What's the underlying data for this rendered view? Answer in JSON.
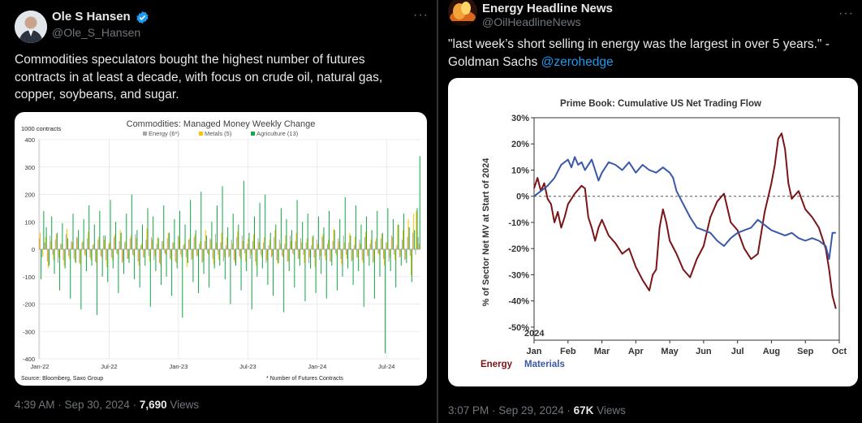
{
  "left_post": {
    "author_name": "Ole S Hansen",
    "author_handle": "@Ole_S_Hansen",
    "verified_icon": "verified-badge-icon",
    "text_lines": [
      "Commodities speculators bought the highest number of futures",
      "contracts in at least a decade, with focus on crude oil, natural gas,",
      "copper, soybeans, and sugar."
    ],
    "time": "4:39 AM · Sep 30, 2024 · ",
    "views_count": "7,690",
    "views_label": " Views"
  },
  "right_post": {
    "author_name": "Energy Headline News",
    "author_handle": "@OilHeadlineNews",
    "text_line1": "\"last week’s short selling in energy was the largest in over 5 years.\" -",
    "text_line2_prefix": "Goldman Sachs ",
    "text_line2_link": "@zerohedge",
    "time": "3:07 PM · Sep 29, 2024 · ",
    "views_count": "67K",
    "views_label": " Views"
  },
  "chart_data": [
    {
      "type": "bar",
      "title": "Commodities: Managed Money Weekly Change",
      "unit_label": "1000 contracts",
      "ylim": [
        -400,
        400
      ],
      "y_ticks": [
        "400",
        "300",
        "200",
        "100",
        "0",
        "-100",
        "-200",
        "-300",
        "-400"
      ],
      "x_tick_labels": [
        "Jan-22",
        "Jul-22",
        "Jan-23",
        "Jul-23",
        "Jan-24",
        "Jul-24"
      ],
      "legend": [
        "Energy (6*)",
        "Metals (5)",
        "Agriculture (13)"
      ],
      "series_colors": {
        "Energy (6*)": "#a6a6a6",
        "Metals (5)": "#ffc000",
        "Agriculture (13)": "#18a84b"
      },
      "source": "Source: Bloomberg, Saxo Group",
      "footnote": "* Number of Futures Contracts",
      "grid": true,
      "weeks": 143,
      "series": [
        {
          "name": "Energy (6*)",
          "values": [
            40,
            -30,
            25,
            -45,
            50,
            -20,
            35,
            -50,
            20,
            -40,
            55,
            -25,
            30,
            -35,
            45,
            -50,
            25,
            -20,
            40,
            -30,
            15,
            -45,
            35,
            -25,
            50,
            -40,
            20,
            -30,
            45,
            -15,
            30,
            -50,
            25,
            -35,
            40,
            -20,
            55,
            -45,
            15,
            -30,
            35,
            -25,
            45,
            -40,
            20,
            -50,
            30,
            -15,
            40,
            -35,
            25,
            -45,
            50,
            -20,
            15,
            -30,
            35,
            -40,
            45,
            -25,
            20,
            -50,
            30,
            -15,
            40,
            -35,
            55,
            -20,
            25,
            -45,
            15,
            -30,
            35,
            -40,
            45,
            -25,
            50,
            -15,
            20,
            -35,
            30,
            -45,
            40,
            -20,
            25,
            -50,
            15,
            -30,
            45,
            -40,
            35,
            -25,
            20,
            -45,
            50,
            -15,
            30,
            -35,
            40,
            -20,
            25,
            -50,
            15,
            -30,
            35,
            -40,
            45,
            -25,
            20,
            -45,
            30,
            -15,
            40,
            -35,
            50,
            -20,
            25,
            -45,
            15,
            -30,
            35,
            -40,
            45,
            -25,
            20,
            -50,
            30,
            -15,
            40,
            -35,
            25,
            -45,
            50,
            -20,
            15,
            -30,
            35,
            -40,
            45,
            -25,
            60,
            -20,
            45
          ]
        },
        {
          "name": "Metals (5)",
          "values": [
            60,
            -25,
            45,
            -70,
            30,
            -40,
            55,
            -30,
            20,
            -60,
            75,
            -35,
            25,
            -45,
            40,
            -55,
            30,
            -25,
            65,
            -40,
            20,
            -50,
            45,
            -30,
            35,
            -65,
            25,
            -40,
            55,
            -20,
            70,
            -45,
            30,
            -35,
            50,
            -25,
            40,
            -60,
            20,
            -30,
            75,
            -45,
            35,
            -25,
            45,
            -55,
            30,
            -20,
            60,
            -40,
            25,
            -50,
            45,
            -30,
            20,
            -65,
            40,
            -35,
            55,
            -25,
            30,
            -45,
            70,
            -20,
            35,
            -55,
            25,
            -40,
            60,
            -30,
            45,
            -25,
            20,
            -50,
            65,
            -35,
            30,
            -45,
            40,
            -20,
            55,
            -60,
            25,
            -30,
            45,
            -40,
            35,
            -25,
            70,
            -55,
            20,
            -30,
            50,
            -45,
            30,
            -20,
            60,
            -35,
            25,
            -50,
            40,
            -30,
            45,
            -65,
            20,
            -25,
            55,
            -40,
            35,
            -45,
            75,
            -20,
            30,
            -55,
            25,
            -35,
            60,
            -40,
            45,
            -30,
            20,
            -50,
            65,
            -25,
            35,
            -45,
            40,
            -20,
            55,
            -60,
            25,
            -30,
            45,
            -40,
            90,
            -25,
            70,
            -35,
            110,
            -95,
            130,
            140,
            20
          ]
        },
        {
          "name": "Agriculture (13)",
          "values": [
            -110,
            140,
            80,
            -60,
            120,
            -90,
            60,
            -150,
            95,
            -70,
            40,
            -180,
            130,
            -50,
            70,
            -220,
            110,
            -80,
            160,
            -60,
            90,
            -240,
            140,
            -100,
            50,
            -120,
            180,
            -70,
            100,
            -160,
            60,
            -90,
            130,
            -50,
            200,
            -110,
            70,
            -140,
            90,
            -60,
            150,
            -210,
            120,
            -80,
            40,
            -130,
            160,
            -100,
            60,
            -170,
            110,
            -70,
            140,
            -250,
            90,
            -50,
            180,
            -120,
            70,
            -160,
            210,
            -90,
            50,
            -140,
            100,
            -70,
            160,
            -60,
            230,
            -110,
            80,
            -200,
            130,
            -60,
            90,
            -150,
            250,
            -80,
            60,
            -220,
            120,
            -100,
            170,
            -70,
            200,
            -130,
            60,
            -170,
            90,
            -50,
            150,
            -230,
            110,
            -80,
            70,
            -140,
            180,
            -60,
            100,
            -190,
            130,
            -70,
            50,
            -160,
            120,
            -90,
            80,
            -180,
            140,
            -60,
            70,
            -150,
            110,
            -100,
            190,
            -70,
            50,
            -130,
            160,
            -80,
            90,
            -210,
            120,
            -60,
            70,
            -180,
            140,
            -100,
            60,
            -380,
            150,
            -80,
            110,
            -140,
            90,
            -60,
            130,
            -50,
            80,
            -120,
            70,
            150,
            340
          ]
        }
      ]
    },
    {
      "type": "line",
      "title": "Prime Book: Cumulative US Net Trading Flow",
      "ylabel": "% of Sector Net MV at Start of 2024",
      "year_label": "2024",
      "ylim": [
        -55,
        30
      ],
      "y_ticks": [
        "30%",
        "20%",
        "10%",
        "0%",
        "-10%",
        "-20%",
        "-30%",
        "-40%",
        "-50%"
      ],
      "x_tick_labels": [
        "Jan",
        "Feb",
        "Mar",
        "Apr",
        "May",
        "Jun",
        "Jul",
        "Aug",
        "Sep",
        "Oct"
      ],
      "x_range_months": [
        0,
        9
      ],
      "series": [
        {
          "name": "Energy",
          "color": "#7b1416",
          "x": [
            0,
            0.1,
            0.2,
            0.3,
            0.4,
            0.5,
            0.6,
            0.7,
            0.8,
            0.9,
            1.0,
            1.2,
            1.4,
            1.5,
            1.6,
            1.7,
            1.8,
            1.9,
            2.0,
            2.2,
            2.4,
            2.6,
            2.8,
            3.0,
            3.2,
            3.4,
            3.5,
            3.6,
            3.7,
            3.8,
            3.9,
            4.0,
            4.2,
            4.4,
            4.6,
            4.8,
            5.0,
            5.2,
            5.4,
            5.6,
            5.8,
            6.0,
            6.2,
            6.4,
            6.6,
            6.8,
            7.0,
            7.1,
            7.2,
            7.3,
            7.4,
            7.5,
            7.6,
            7.8,
            8.0,
            8.2,
            8.4,
            8.6,
            8.7,
            8.8,
            8.9
          ],
          "y": [
            3,
            7,
            2,
            5,
            -1,
            -3,
            -10,
            -6,
            -12,
            -8,
            -3,
            1,
            4,
            3,
            -8,
            -12,
            -17,
            -12,
            -9,
            -15,
            -18,
            -22,
            -20,
            -27,
            -32,
            -36,
            -30,
            -28,
            -12,
            -5,
            -10,
            -17,
            -22,
            -28,
            -31,
            -24,
            -19,
            -8,
            -2,
            1,
            -10,
            -13,
            -20,
            -24,
            -22,
            -6,
            5,
            12,
            22,
            24,
            18,
            5,
            -1,
            2,
            -5,
            -8,
            -12,
            -20,
            -28,
            -38,
            -43
          ]
        },
        {
          "name": "Materials",
          "color": "#3a58a8",
          "x": [
            0,
            0.2,
            0.4,
            0.6,
            0.8,
            1.0,
            1.1,
            1.2,
            1.3,
            1.4,
            1.5,
            1.7,
            1.9,
            2.0,
            2.2,
            2.4,
            2.6,
            2.8,
            3.0,
            3.2,
            3.4,
            3.6,
            3.8,
            4.0,
            4.1,
            4.2,
            4.4,
            4.6,
            4.8,
            5.0,
            5.2,
            5.4,
            5.6,
            5.8,
            6.0,
            6.2,
            6.4,
            6.6,
            6.8,
            7.0,
            7.2,
            7.4,
            7.6,
            7.8,
            8.0,
            8.2,
            8.4,
            8.6,
            8.7,
            8.8,
            8.9
          ],
          "y": [
            0,
            2,
            4,
            7,
            12,
            14,
            11,
            15,
            12,
            13,
            10,
            14,
            6,
            9,
            13,
            12,
            10,
            13,
            9,
            12,
            10,
            9,
            11,
            9,
            7,
            2,
            -3,
            -8,
            -12,
            -13,
            -14,
            -17,
            -19,
            -16,
            -14,
            -13,
            -12,
            -9,
            -11,
            -13,
            -14,
            -15,
            -14,
            -16,
            -17,
            -16,
            -17,
            -19,
            -24,
            -14,
            -14
          ]
        }
      ]
    }
  ],
  "legend_right": {
    "energy": "Energy",
    "materials": "Materials"
  }
}
